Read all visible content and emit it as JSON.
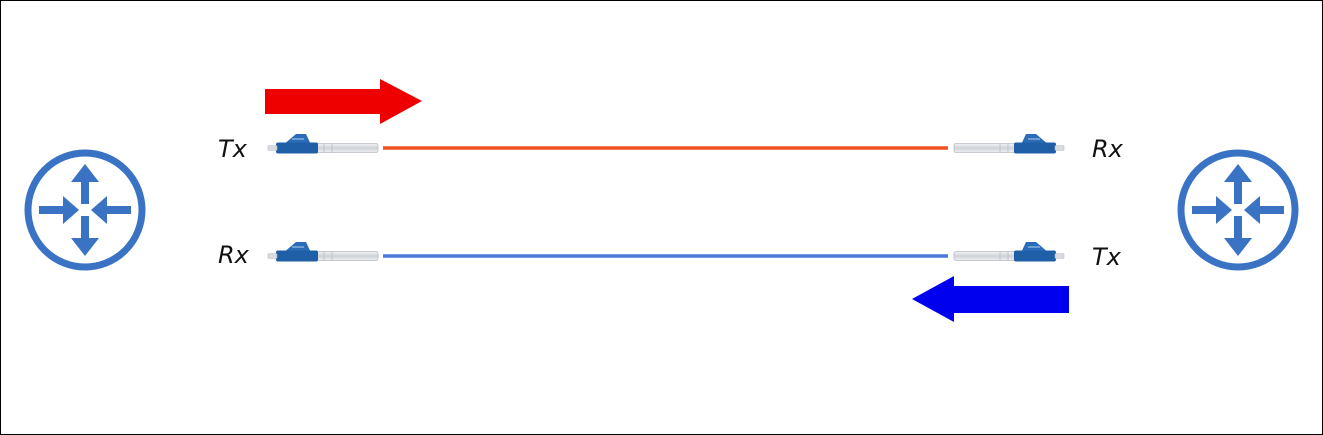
{
  "labels": {
    "left_top": "Tx",
    "left_bottom": "Rx",
    "right_top": "Rx",
    "right_bottom": "Tx"
  },
  "icons": {
    "left_router": "router-icon",
    "right_router": "router-icon",
    "connector": "lc-fiber-connector-icon",
    "arrow_right": "arrow-right-icon",
    "arrow_left": "arrow-left-icon"
  },
  "colors": {
    "router": "#3a72c4",
    "connector_body": "#1f5fa8",
    "connector_boot": "#d0d4d8",
    "fiber_top": "#f05222",
    "fiber_bottom": "#4a78d8",
    "arrow_top": "#ee0000",
    "arrow_bottom": "#0000ee",
    "border": "#000000"
  }
}
